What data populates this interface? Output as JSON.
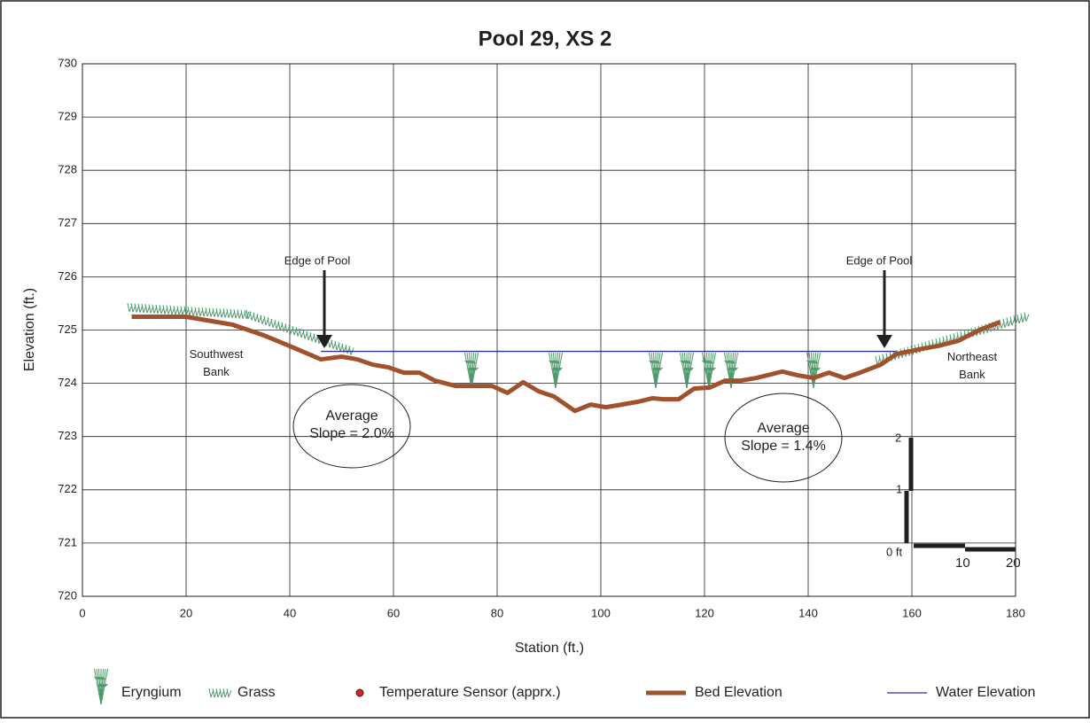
{
  "chart_data": {
    "type": "line",
    "title": "Pool 29, XS 2",
    "x_label": "Station (ft.)",
    "y_label": "Elevation (ft.)",
    "xlim": [
      0,
      180
    ],
    "xticks": [
      0,
      20,
      40,
      60,
      80,
      100,
      120,
      140,
      160,
      180
    ],
    "ylim": [
      720,
      730
    ],
    "yticks": [
      720,
      721,
      722,
      723,
      724,
      725,
      726,
      727,
      728,
      729,
      730
    ],
    "grid": true,
    "series": [
      {
        "name": "Bed Elevation",
        "color": "#a0522d",
        "x": [
          9.5,
          20,
          29,
          35,
          40,
          46,
          50,
          53,
          56,
          59,
          62,
          65,
          68,
          72,
          75,
          79,
          82,
          85,
          88,
          91,
          95,
          98,
          101,
          104,
          107,
          110,
          112,
          115,
          118,
          121,
          124,
          127,
          130,
          135,
          138,
          141,
          144,
          147,
          150,
          154,
          157,
          162,
          165,
          169,
          173,
          177
        ],
        "values": [
          725.25,
          725.25,
          725.1,
          724.9,
          724.7,
          724.45,
          724.5,
          724.45,
          724.35,
          724.3,
          724.2,
          724.2,
          724.05,
          723.95,
          723.95,
          723.95,
          723.82,
          724.02,
          723.85,
          723.75,
          723.48,
          723.6,
          723.55,
          723.6,
          723.65,
          723.72,
          723.7,
          723.7,
          723.9,
          723.92,
          724.05,
          724.05,
          724.1,
          724.22,
          724.15,
          724.1,
          724.2,
          724.1,
          724.2,
          724.35,
          724.55,
          724.65,
          724.7,
          724.8,
          725.0,
          725.15
        ]
      },
      {
        "name": "Water Elevation",
        "color": "#2e3192",
        "x": [
          46,
          157
        ],
        "values": [
          724.6,
          724.6
        ]
      }
    ],
    "legend_items": [
      "Eryngium",
      "Grass",
      "Temperature Sensor (apprx.)"
    ],
    "annotations": [
      "Edge of Pool",
      "Edge of Pool",
      "Southwest Bank",
      "Northeast Bank",
      "Average Slope = 2.0%",
      "Average Slope = 1.4%"
    ],
    "scale_bar": [
      "0 ft",
      "1",
      "2",
      "10",
      "20"
    ]
  }
}
